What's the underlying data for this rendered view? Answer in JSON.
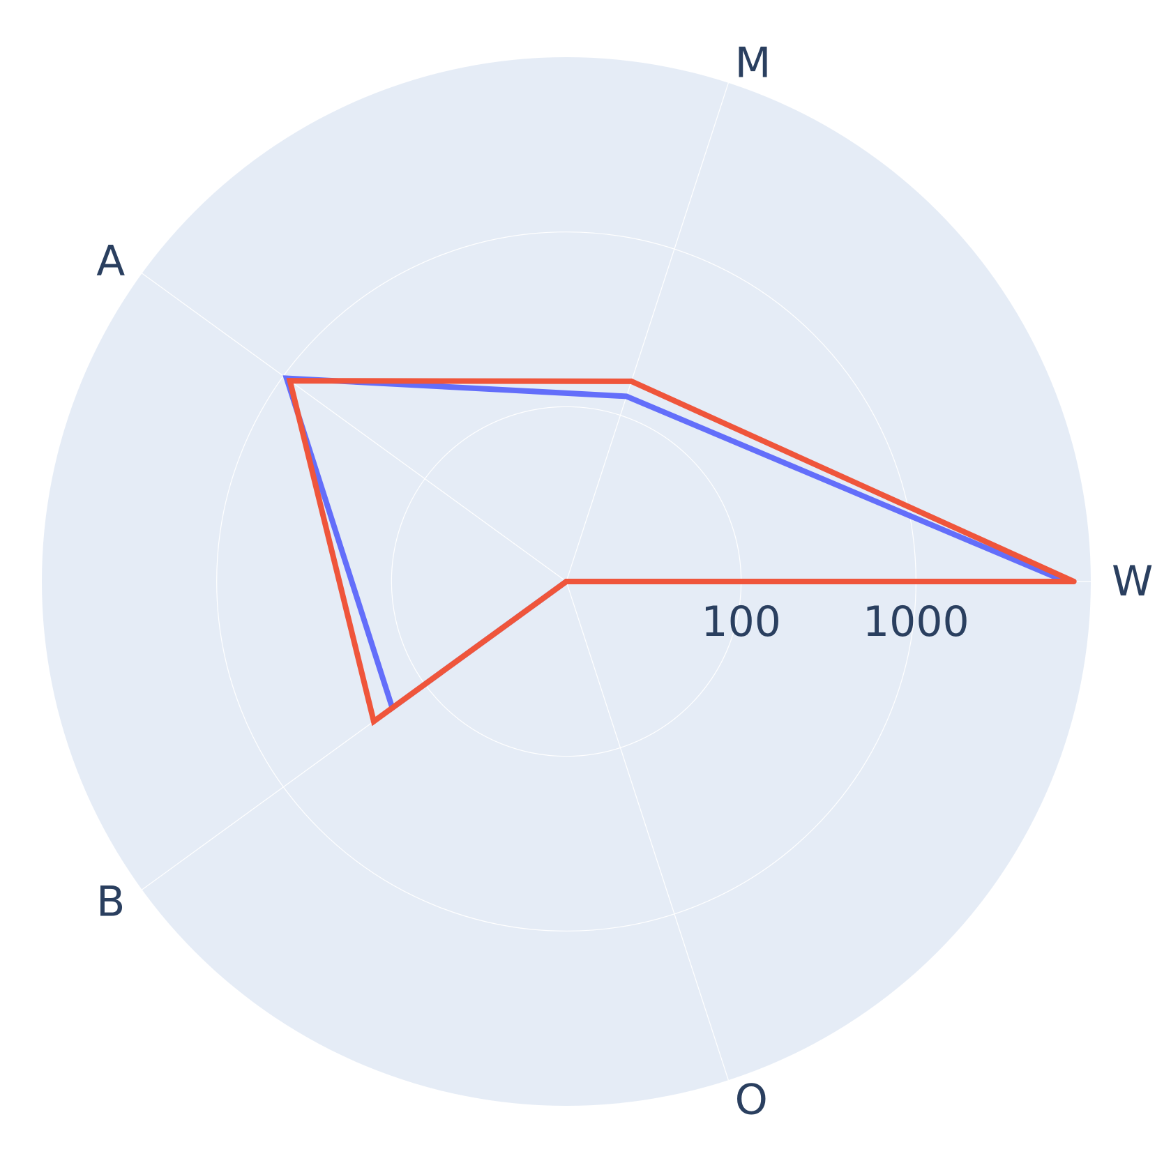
{
  "chart_data": {
    "type": "radar",
    "title": "",
    "categories": [
      "W",
      "M",
      "A",
      "B",
      "O"
    ],
    "radial_axis": {
      "scale": "log",
      "range": [
        10,
        10000
      ],
      "tick_labels": [
        "100",
        "1000"
      ],
      "ticks": [
        100,
        1000
      ]
    },
    "grid": true,
    "legend": "none",
    "series": [
      {
        "color": "#636efa",
        "values": [
          7200,
          130,
          950,
          170,
          10
        ]
      },
      {
        "color": "#ef553b",
        "values": [
          8000,
          160,
          900,
          230,
          10
        ]
      }
    ],
    "colors": {
      "plot_bg": "#e5ecf6",
      "grid": "#ffffff",
      "text": "#2a3f5f"
    }
  }
}
